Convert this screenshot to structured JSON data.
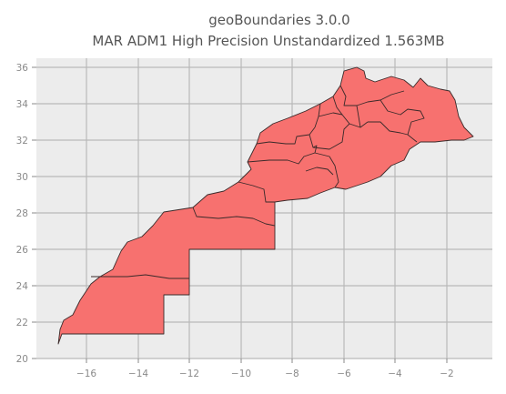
{
  "map": {
    "title_line1": "geoBoundaries 3.0.0",
    "title_line2": "MAR ADM1 High Precision Unstandardized 1.563MB",
    "fill_color": "#f7716f",
    "background_color": "#ececec",
    "x_ticks": [
      "−16",
      "−14",
      "−12",
      "−10",
      "−8",
      "−6",
      "−4",
      "−2"
    ],
    "y_ticks": [
      "20",
      "22",
      "24",
      "26",
      "28",
      "30",
      "32",
      "34",
      "36"
    ]
  }
}
